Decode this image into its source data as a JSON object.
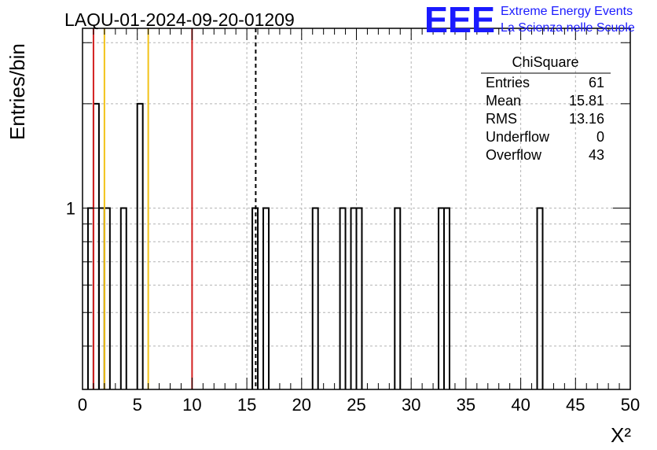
{
  "title": "LAQU-01-2024-09-20-01209",
  "logo": {
    "mark": "EEE",
    "line1": "Extreme Energy Events",
    "line2": "La Scienza nelle Scuole",
    "color": "#1a1aff"
  },
  "stats_box": {
    "header": "ChiSquare",
    "rows": [
      {
        "label": "Entries",
        "value": "61"
      },
      {
        "label": "Mean",
        "value": "15.81"
      },
      {
        "label": "RMS",
        "value": "13.16"
      },
      {
        "label": "Underflow",
        "value": "0"
      },
      {
        "label": "Overflow",
        "value": "43"
      }
    ]
  },
  "chart_data": {
    "type": "bar",
    "histogram": true,
    "title": "LAQU-01-2024-09-20-01209",
    "xlabel": "X²",
    "ylabel": "Entries/bin",
    "xlim": [
      0,
      50
    ],
    "ylog": true,
    "ylim": [
      0.3,
      3.3
    ],
    "bin_width": 0.5,
    "x_ticks": [
      "0",
      "5",
      "10",
      "15",
      "20",
      "25",
      "30",
      "35",
      "40",
      "45",
      "50"
    ],
    "y_tick_labels": [
      {
        "value": 1,
        "label": "1"
      }
    ],
    "bins": [
      {
        "x": 0.5,
        "count": 1
      },
      {
        "x": 1.0,
        "count": 2
      },
      {
        "x": 1.5,
        "count": 1
      },
      {
        "x": 2.0,
        "count": 1
      },
      {
        "x": 3.5,
        "count": 1
      },
      {
        "x": 5.0,
        "count": 2
      },
      {
        "x": 15.5,
        "count": 1
      },
      {
        "x": 16.5,
        "count": 1
      },
      {
        "x": 21.0,
        "count": 1
      },
      {
        "x": 23.5,
        "count": 1
      },
      {
        "x": 24.5,
        "count": 1
      },
      {
        "x": 25.0,
        "count": 1
      },
      {
        "x": 28.5,
        "count": 1
      },
      {
        "x": 32.5,
        "count": 1
      },
      {
        "x": 33.0,
        "count": 1
      },
      {
        "x": 41.5,
        "count": 1
      }
    ],
    "vertical_lines": [
      {
        "x": 1,
        "color": "#d32020",
        "style": "solid"
      },
      {
        "x": 2,
        "color": "#f2c318",
        "style": "solid"
      },
      {
        "x": 6,
        "color": "#f2c318",
        "style": "solid"
      },
      {
        "x": 10,
        "color": "#d32020",
        "style": "solid"
      },
      {
        "x": 15.81,
        "color": "#000000",
        "style": "dashed"
      }
    ],
    "grid": true,
    "legend": "top-right"
  }
}
